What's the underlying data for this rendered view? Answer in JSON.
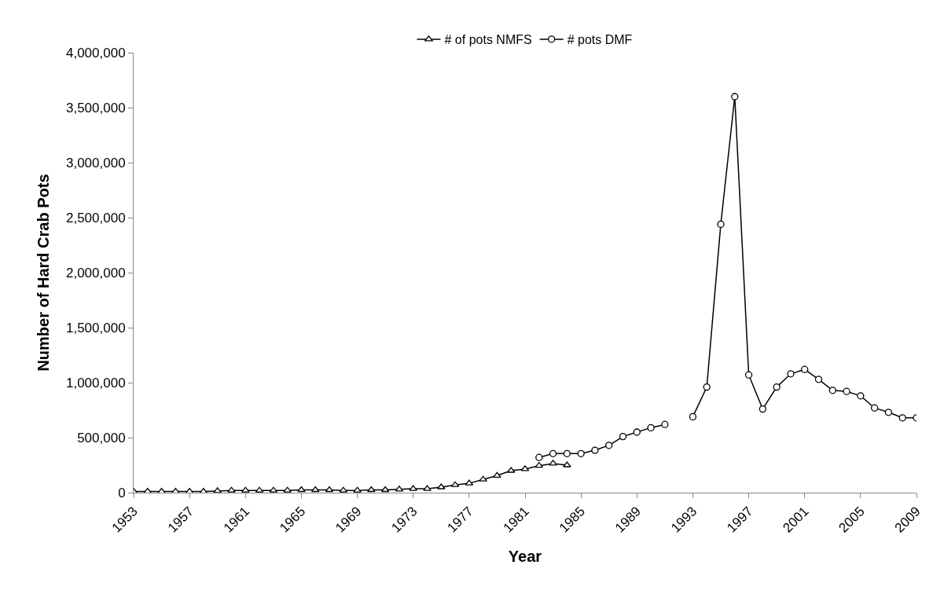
{
  "chart_data": {
    "type": "line",
    "xlabel": "Year",
    "ylabel": "Number of Hard Crab Pots",
    "xlim": [
      1953,
      2009
    ],
    "xticks": [
      1953,
      1957,
      1961,
      1965,
      1969,
      1973,
      1977,
      1981,
      1985,
      1989,
      1993,
      1997,
      2001,
      2005,
      2009
    ],
    "ylim": [
      0,
      4000000
    ],
    "yticks": [
      {
        "value": 0,
        "label": "0"
      },
      {
        "value": 500000,
        "label": "500,000"
      },
      {
        "value": 1000000,
        "label": "1,000,000"
      },
      {
        "value": 1500000,
        "label": "1,500,000"
      },
      {
        "value": 2000000,
        "label": "2,000,000"
      },
      {
        "value": 2500000,
        "label": "2,500,000"
      },
      {
        "value": 3000000,
        "label": "3,000,000"
      },
      {
        "value": 3500000,
        "label": "3,500,000"
      },
      {
        "value": 4000000,
        "label": "4,000,000"
      }
    ],
    "legend": "top",
    "line_style": "solid",
    "series": [
      {
        "name": "# of pots NMFS",
        "color": "#000000",
        "marker": "triangle",
        "x": [
          1953,
          1954,
          1955,
          1956,
          1957,
          1958,
          1959,
          1960,
          1961,
          1962,
          1963,
          1964,
          1965,
          1966,
          1967,
          1968,
          1969,
          1970,
          1971,
          1972,
          1973,
          1974,
          1975,
          1976,
          1977,
          1978,
          1979,
          1980,
          1981,
          1982,
          1983,
          1984
        ],
        "values": [
          10000,
          10000,
          10000,
          10000,
          10000,
          10000,
          15000,
          20000,
          20000,
          20000,
          20000,
          20000,
          25000,
          25000,
          25000,
          20000,
          20000,
          25000,
          25000,
          30000,
          35000,
          35000,
          50000,
          70000,
          85000,
          120000,
          155000,
          200000,
          215000,
          245000,
          265000,
          250000
        ]
      },
      {
        "name": "# pots DMF",
        "color": "#000000",
        "marker": "circle",
        "x": [
          1982,
          1983,
          1984,
          1985,
          1986,
          1987,
          1988,
          1989,
          1990,
          1991,
          1992,
          1993,
          1994,
          1995,
          1996,
          1997,
          1998,
          1999,
          2000,
          2001,
          2002,
          2003,
          2004,
          2005,
          2006,
          2007,
          2008,
          2009
        ],
        "values": [
          320000,
          355000,
          355000,
          355000,
          385000,
          430000,
          510000,
          550000,
          590000,
          620000,
          null,
          690000,
          960000,
          2440000,
          3600000,
          1070000,
          760000,
          960000,
          1080000,
          1120000,
          1030000,
          930000,
          920000,
          880000,
          770000,
          730000,
          680000,
          680000
        ]
      }
    ]
  }
}
